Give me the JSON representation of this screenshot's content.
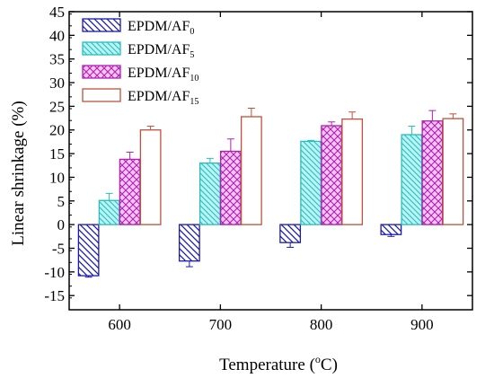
{
  "chart_data": {
    "type": "bar",
    "xlabel": "Temperature (",
    "xlabel_sup": "o",
    "xlabel_end": "C)",
    "ylabel": "Linear shrinkage (%)",
    "categories": [
      "600",
      "700",
      "800",
      "900"
    ],
    "ylim": [
      -18,
      45
    ],
    "yticks": [
      -15,
      -10,
      -5,
      0,
      5,
      10,
      15,
      20,
      25,
      30,
      35,
      40,
      45
    ],
    "grid": false,
    "legend_position": "top-left",
    "series": [
      {
        "name": "EPDM/AF",
        "name_sub": "0",
        "values": [
          -10.8,
          -7.7,
          -3.8,
          -2.1
        ],
        "errors": [
          0.3,
          1.2,
          1.0,
          0.4
        ],
        "color": "#1a1ab0",
        "fill": "#ffffff",
        "pattern": "diagonal-back"
      },
      {
        "name": "EPDM/AF",
        "name_sub": "5",
        "values": [
          5.1,
          13.0,
          17.6,
          19.0
        ],
        "errors": [
          1.5,
          1.0,
          0.2,
          1.8
        ],
        "color": "#2bbcbc",
        "fill": "#b8f4f4",
        "pattern": "diagonal-back-light"
      },
      {
        "name": "EPDM/AF",
        "name_sub": "10",
        "values": [
          13.8,
          15.5,
          20.9,
          21.9
        ],
        "errors": [
          1.5,
          2.6,
          0.8,
          2.2
        ],
        "color": "#b020b0",
        "fill": "#f6c6f6",
        "pattern": "crosshatch"
      },
      {
        "name": "EPDM/AF",
        "name_sub": "15",
        "values": [
          20.0,
          22.8,
          22.3,
          22.4
        ],
        "errors": [
          0.8,
          1.8,
          1.5,
          1.0
        ],
        "color": "#c0503a",
        "fill": "#ffffff",
        "pattern": "none"
      }
    ]
  }
}
